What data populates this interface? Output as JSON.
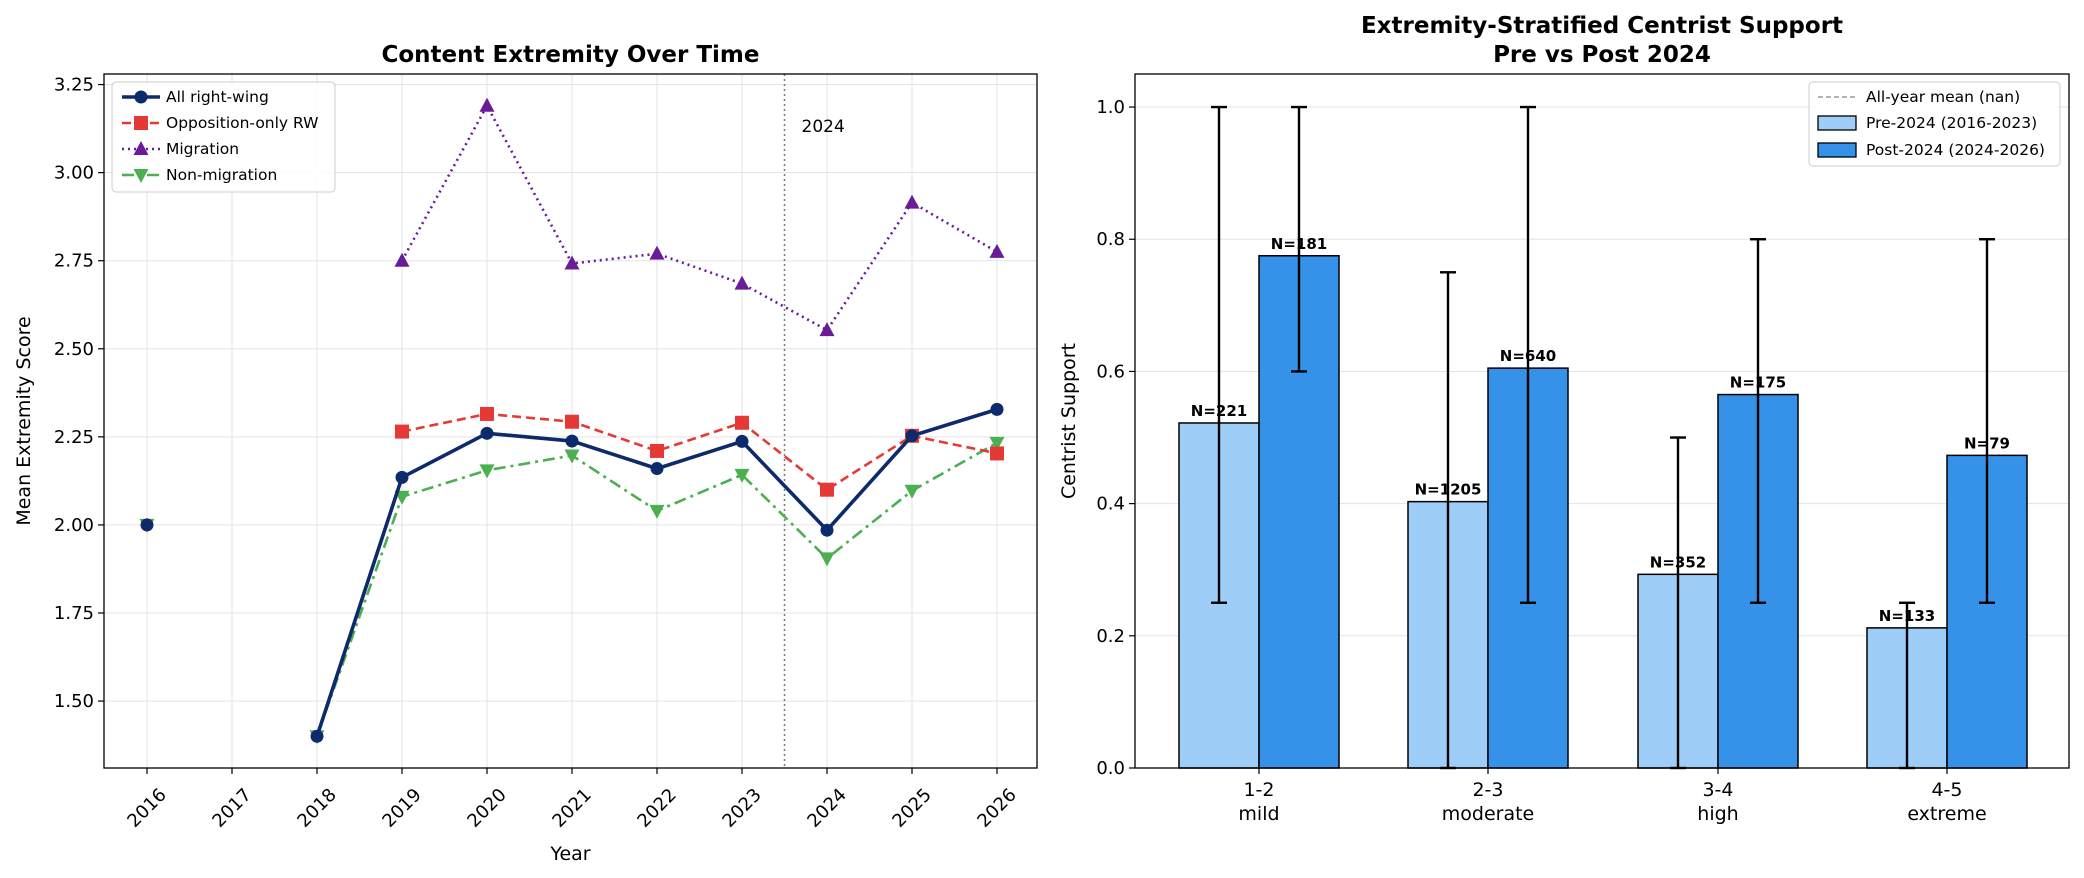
{
  "chart_data": [
    {
      "type": "line",
      "title": "Content Extremity Over Time",
      "xlabel": "Year",
      "ylabel": "Mean Extremity Score",
      "categories": [
        "2016",
        "2017",
        "2018",
        "2019",
        "2020",
        "2021",
        "2022",
        "2023",
        "2024",
        "2025",
        "2026"
      ],
      "ylim": [
        1.31,
        3.28
      ],
      "yticks": [
        "1.50",
        "1.75",
        "2.00",
        "2.25",
        "2.50",
        "2.75",
        "3.00",
        "3.25"
      ],
      "grid": true,
      "legend_position": "top-left",
      "vline": {
        "x_between": [
          "2023",
          "2024"
        ],
        "label": "2024"
      },
      "series": [
        {
          "name": "All right-wing",
          "color": "#0d2a6b",
          "marker": "circle",
          "dash": "solid",
          "values": [
            2.0,
            null,
            1.4,
            2.135,
            2.26,
            2.238,
            2.16,
            2.237,
            1.985,
            2.253,
            2.328
          ]
        },
        {
          "name": "Opposition-only RW",
          "color": "#e53935",
          "marker": "square",
          "dash": "dashed",
          "values": [
            null,
            null,
            null,
            2.265,
            2.315,
            2.293,
            2.21,
            2.29,
            2.1,
            2.253,
            2.203
          ]
        },
        {
          "name": "Migration",
          "color": "#6a1b9a",
          "marker": "triangle-up",
          "dash": "dotted",
          "values": [
            null,
            null,
            null,
            2.75,
            3.19,
            2.742,
            2.77,
            2.685,
            2.553,
            2.915,
            2.775
          ]
        },
        {
          "name": "Non-migration",
          "color": "#4caf50",
          "marker": "triangle-down",
          "dash": "dashdot",
          "values": [
            2.0,
            null,
            1.4,
            2.08,
            2.155,
            2.197,
            2.04,
            2.142,
            1.905,
            2.097,
            2.233
          ]
        }
      ]
    },
    {
      "type": "bar",
      "title": "Extremity-Stratified Centrist Support",
      "subtitle": "Pre vs Post 2024",
      "xlabel": "",
      "ylabel": "Centrist Support",
      "categories": [
        {
          "line1": "1-2",
          "line2": "mild"
        },
        {
          "line1": "2-3",
          "line2": "moderate"
        },
        {
          "line1": "3-4",
          "line2": "high"
        },
        {
          "line1": "4-5",
          "line2": "extreme"
        }
      ],
      "ylim": [
        0,
        1.05
      ],
      "yticks": [
        "0.0",
        "0.2",
        "0.4",
        "0.6",
        "0.8",
        "1.0"
      ],
      "grid": true,
      "legend_position": "top-right",
      "mean_line_label": "All-year mean (nan)",
      "series": [
        {
          "name": "Pre-2024 (2016-2023)",
          "color": "#9ecdf7",
          "values": [
            0.522,
            0.403,
            0.293,
            0.212
          ],
          "err_low": [
            0.25,
            0.0,
            0.0,
            0.0
          ],
          "err_high": [
            1.0,
            0.75,
            0.5,
            0.25
          ],
          "n_labels": [
            "N=221",
            "N=1205",
            "N=352",
            "N=133"
          ]
        },
        {
          "name": "Post-2024 (2024-2026)",
          "color": "#3592e8",
          "values": [
            0.775,
            0.605,
            0.565,
            0.473
          ],
          "err_low": [
            0.6,
            0.25,
            0.25,
            0.25
          ],
          "err_high": [
            1.0,
            1.0,
            0.8,
            0.8
          ],
          "n_labels": [
            "N=181",
            "N=640",
            "N=175",
            "N=79"
          ]
        }
      ]
    }
  ]
}
